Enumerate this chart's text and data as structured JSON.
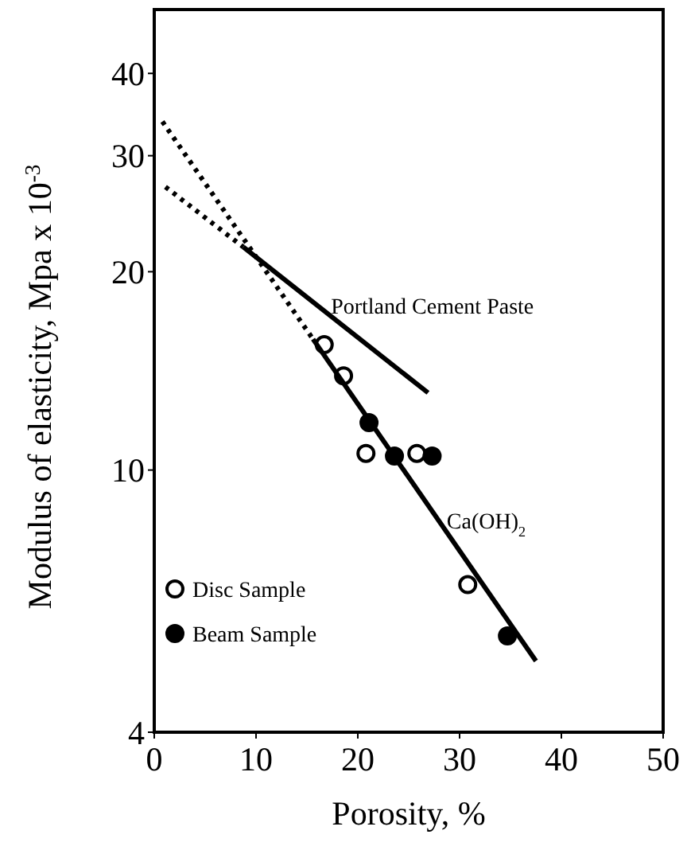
{
  "chart_data": {
    "type": "scatter",
    "xlabel": "Porosity, %",
    "ylabel": "Modulus of elasticity, Mpa x 10$^{-3}$",
    "log": "y",
    "xlim": [
      0,
      50
    ],
    "xticks": [
      0,
      10,
      20,
      30,
      40,
      50
    ],
    "ylim": [
      4,
      50
    ],
    "yticks": [
      4,
      10,
      20,
      30,
      40
    ],
    "grid": false,
    "legend": "bottom left",
    "series": [
      {
        "name": "Disc Sample",
        "marker": "circle",
        "color": "#ffffff",
        "x": [
          16.7,
          18.6,
          20.8,
          25.8,
          30.8
        ],
        "values": [
          15.5,
          13.9,
          10.6,
          10.6,
          6.7
        ]
      },
      {
        "name": "Beam Sample",
        "marker": "circle",
        "color": "#000000",
        "x": [
          21.1,
          23.6,
          27.3,
          34.7
        ],
        "values": [
          11.8,
          10.5,
          10.5,
          5.6
        ]
      },
      {
        "name": "Portland Cement Paste",
        "type": "line",
        "line_style": "solid",
        "color": "#000000",
        "x": [
          8.75,
          26.9
        ],
        "values": [
          21.8,
          13.1
        ]
      },
      {
        "type": "line",
        "line_style": "dotted",
        "color": "#000000",
        "x": [
          1.1,
          8.75
        ],
        "values": [
          26.9,
          21.8
        ]
      },
      {
        "name": "Ca(OH)$_{2}$",
        "type": "line",
        "line_style": "solid",
        "color": "#000000",
        "x": [
          15.6,
          37.5
        ],
        "values": [
          15.8,
          5.13
        ]
      },
      {
        "type": "line",
        "line_style": "dotted",
        "color": "#000000",
        "x": [
          0.8,
          15.6
        ],
        "values": [
          33.8,
          15.8
        ]
      }
    ]
  }
}
